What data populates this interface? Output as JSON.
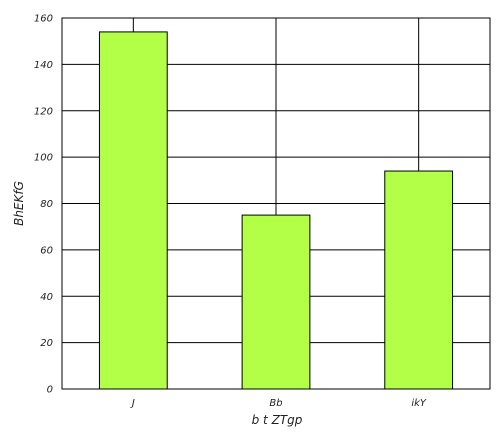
{
  "chart_data": {
    "type": "bar",
    "title": "",
    "xlabel": "b  t ZTgp",
    "ylabel": "BhEKfG",
    "categories": [
      "J",
      "Bb",
      "ikY"
    ],
    "values": [
      154,
      75,
      94
    ],
    "ylim": [
      0,
      160
    ],
    "yticks": [
      0,
      20,
      40,
      60,
      80,
      100,
      120,
      140,
      160
    ],
    "grid": true,
    "bar_color": "#b3ff47",
    "edge_color": "#000000"
  }
}
